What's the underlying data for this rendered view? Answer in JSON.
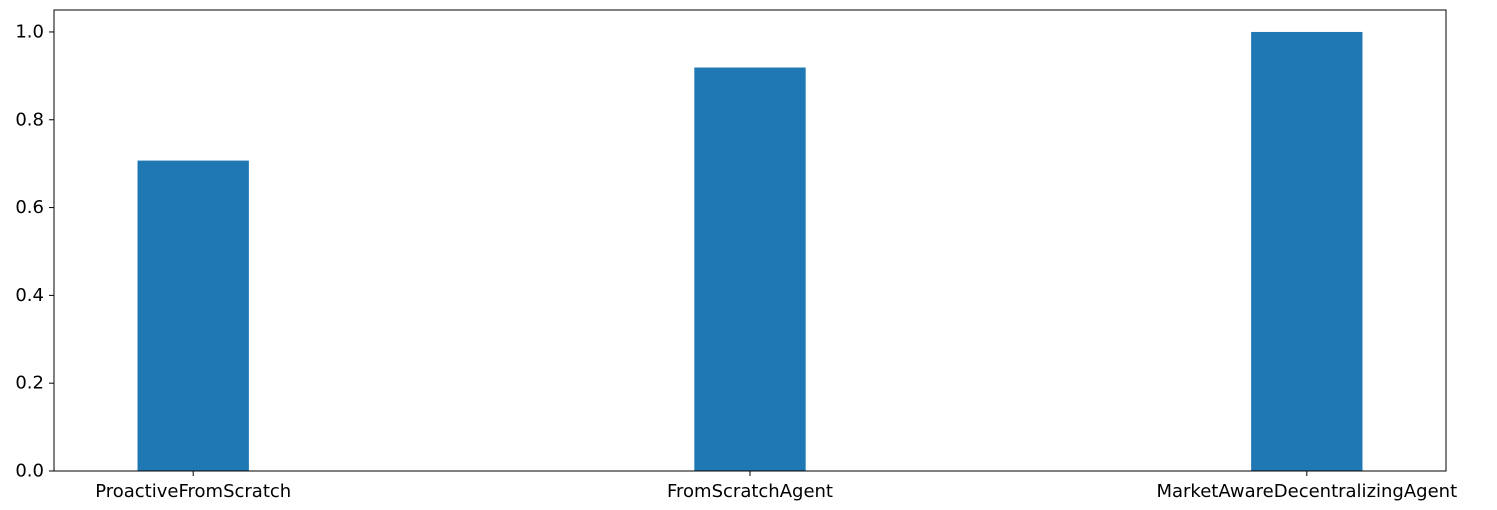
{
  "chart_data": {
    "type": "bar",
    "title": "",
    "xlabel": "",
    "ylabel": "",
    "categories": [
      "ProactiveFromScratch",
      "FromScratchAgent",
      "MarketAwareDecentralizingAgent"
    ],
    "values": [
      0.707,
      0.919,
      1.0
    ],
    "ylim": [
      0,
      1.05
    ],
    "yticks": [
      0.0,
      0.2,
      0.4,
      0.6,
      0.8,
      1.0
    ],
    "ytick_labels": [
      "0.0",
      "0.2",
      "0.4",
      "0.6",
      "0.8",
      "1.0"
    ],
    "grid": false,
    "bar_color": "#1f77b4",
    "axis_color": "#000000"
  }
}
